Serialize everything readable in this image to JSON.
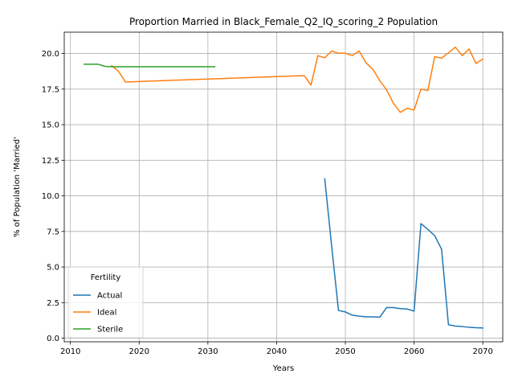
{
  "chart_data": {
    "type": "line",
    "title": "Proportion Married in Black_Female_Q2_IQ_scoring_2 Population",
    "xlabel": "Years",
    "ylabel": "% of Population 'Married'",
    "xlim": [
      2009.1,
      2072.9
    ],
    "ylim": [
      -0.25,
      21.5
    ],
    "xticks": [
      2010,
      2020,
      2030,
      2040,
      2050,
      2060,
      2070
    ],
    "xtick_labels": [
      "2010",
      "2020",
      "2030",
      "2040",
      "2050",
      "2060",
      "2070"
    ],
    "yticks": [
      0,
      2.5,
      5,
      7.5,
      10,
      12.5,
      15,
      17.5,
      20
    ],
    "ytick_labels": [
      "0.0",
      "2.5",
      "5.0",
      "7.5",
      "10.0",
      "12.5",
      "15.0",
      "17.5",
      "20.0"
    ],
    "grid": true,
    "legend": {
      "title": "Fertility",
      "placement": "lower-left"
    },
    "series": [
      {
        "name": "Actual",
        "color": "#1f77b4",
        "x": [
          2047,
          2048,
          2049,
          2050,
          2051,
          2052,
          2053,
          2054,
          2055,
          2056,
          2057,
          2058,
          2059,
          2060,
          2061,
          2062,
          2063,
          2064,
          2065,
          2066,
          2067,
          2068,
          2069,
          2070
        ],
        "y": [
          11.2,
          6.5,
          1.95,
          1.85,
          1.62,
          1.55,
          1.5,
          1.5,
          1.48,
          2.15,
          2.15,
          2.08,
          2.05,
          1.9,
          8.05,
          7.65,
          7.2,
          6.25,
          0.95,
          0.85,
          0.82,
          0.77,
          0.74,
          0.72
        ]
      },
      {
        "name": "Ideal",
        "color": "#ff7f0e",
        "x": [
          2016,
          2017,
          2018,
          2044,
          2045,
          2046,
          2047,
          2048,
          2049,
          2050,
          2051,
          2052,
          2053,
          2054,
          2055,
          2056,
          2057,
          2058,
          2059,
          2060,
          2061,
          2062,
          2063,
          2064,
          2065,
          2066,
          2067,
          2068,
          2069,
          2070
        ],
        "y": [
          19.15,
          18.75,
          18.0,
          18.45,
          17.78,
          19.85,
          19.7,
          20.18,
          20.02,
          20.02,
          19.85,
          20.18,
          19.35,
          18.9,
          18.1,
          17.45,
          16.5,
          15.87,
          16.15,
          16.03,
          17.5,
          17.4,
          19.78,
          19.68,
          20.05,
          20.45,
          19.85,
          20.32,
          19.3,
          19.6
        ]
      },
      {
        "name": "Sterile",
        "color": "#2ca02c",
        "x": [
          2012,
          2013,
          2014,
          2015,
          2016,
          2017,
          2031
        ],
        "y": [
          19.25,
          19.25,
          19.25,
          19.1,
          19.07,
          19.07,
          19.07
        ]
      }
    ]
  }
}
